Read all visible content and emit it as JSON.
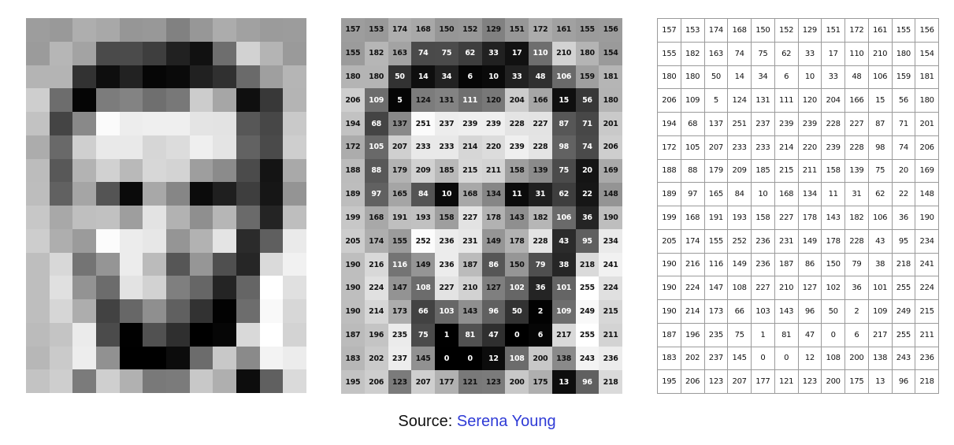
{
  "caption": {
    "prefix": "Source: ",
    "link_text": "Serena Young"
  },
  "colors": {
    "link": "#2f3bd6",
    "grid_line": "#9a9a9a"
  },
  "pixels": [
    [
      157,
      153,
      174,
      168,
      150,
      152,
      129,
      151,
      172,
      161,
      155,
      156
    ],
    [
      155,
      182,
      163,
      74,
      75,
      62,
      33,
      17,
      110,
      210,
      180,
      154
    ],
    [
      180,
      180,
      50,
      14,
      34,
      6,
      10,
      33,
      48,
      106,
      159,
      181
    ],
    [
      206,
      109,
      5,
      124,
      131,
      111,
      120,
      204,
      166,
      15,
      56,
      180
    ],
    [
      194,
      68,
      137,
      251,
      237,
      239,
      239,
      228,
      227,
      87,
      71,
      201
    ],
    [
      172,
      105,
      207,
      233,
      233,
      214,
      220,
      239,
      228,
      98,
      74,
      206
    ],
    [
      188,
      88,
      179,
      209,
      185,
      215,
      211,
      158,
      139,
      75,
      20,
      169
    ],
    [
      189,
      97,
      165,
      84,
      10,
      168,
      134,
      11,
      31,
      62,
      22,
      148
    ],
    [
      199,
      168,
      191,
      193,
      158,
      227,
      178,
      143,
      182,
      106,
      36,
      190
    ],
    [
      205,
      174,
      155,
      252,
      236,
      231,
      149,
      178,
      228,
      43,
      95,
      234
    ],
    [
      190,
      216,
      116,
      149,
      236,
      187,
      86,
      150,
      79,
      38,
      218,
      241
    ],
    [
      190,
      224,
      147,
      108,
      227,
      210,
      127,
      102,
      36,
      101,
      255,
      224
    ],
    [
      190,
      214,
      173,
      66,
      103,
      143,
      96,
      50,
      2,
      109,
      249,
      215
    ],
    [
      187,
      196,
      235,
      75,
      1,
      81,
      47,
      0,
      6,
      217,
      255,
      211
    ],
    [
      183,
      202,
      237,
      145,
      0,
      0,
      12,
      108,
      200,
      138,
      243,
      236
    ],
    [
      195,
      206,
      123,
      207,
      177,
      121,
      123,
      200,
      175,
      13,
      96,
      218
    ]
  ]
}
